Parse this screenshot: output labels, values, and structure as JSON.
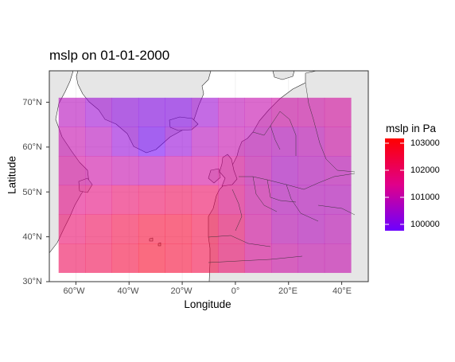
{
  "chart_data": {
    "type": "heatmap",
    "title": "mslp on 01-01-2000",
    "xlabel": "Longitude",
    "ylabel": "Latitude",
    "x_tick_labels": [
      "60°W",
      "40°W",
      "20°W",
      "0°",
      "20°E",
      "40°E"
    ],
    "y_tick_labels": [
      "30°N",
      "40°N",
      "50°N",
      "60°N",
      "70°N"
    ],
    "xlim": [
      -70,
      50
    ],
    "ylim": [
      30,
      77
    ],
    "grid": true,
    "legend": {
      "title": "mslp in Pa",
      "placement": "right",
      "tick_labels": [
        "103000",
        "102000",
        "101000",
        "100000"
      ],
      "colors": [
        "#ff0000",
        "#6c00ff"
      ]
    },
    "coverage": {
      "lon_range": [
        -66.5,
        41.5
      ],
      "lat_range": [
        32,
        71
      ]
    },
    "cell_size_deg": [
      10,
      6.5
    ],
    "rows_lat_top": [
      71,
      64.5,
      58,
      51.5,
      45,
      38.5
    ],
    "cols_lon_left": [
      -66.5,
      -56.5,
      -46.5,
      -36.5,
      -26.5,
      -16.5,
      -6.5,
      3.5,
      13.5,
      23.5,
      33.5
    ],
    "values_pa": [
      [
        100900,
        100600,
        100400,
        100300,
        100300,
        100600,
        101000,
        101100,
        101200,
        101200,
        101300
      ],
      [
        101100,
        100900,
        100500,
        100100,
        100500,
        100900,
        101100,
        101000,
        100900,
        101000,
        101200
      ],
      [
        101300,
        101200,
        101100,
        101000,
        101200,
        101300,
        101400,
        101100,
        100800,
        100900,
        101000
      ],
      [
        101600,
        101700,
        101900,
        102000,
        102100,
        102000,
        101600,
        101200,
        100900,
        100900,
        100900
      ],
      [
        101900,
        102100,
        102300,
        102500,
        102500,
        102300,
        101900,
        101300,
        101000,
        100900,
        101000
      ],
      [
        102100,
        102200,
        102400,
        102600,
        102500,
        102300,
        101900,
        101400,
        101200,
        101100,
        101100
      ]
    ]
  }
}
